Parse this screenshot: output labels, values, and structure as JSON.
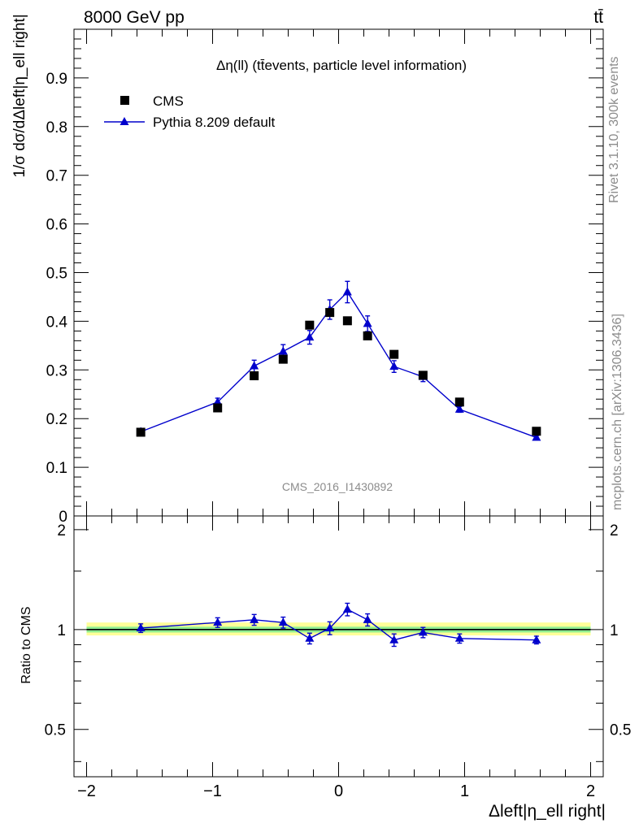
{
  "header": {
    "left": "8000 GeV pp",
    "right": "tt̄"
  },
  "side_text": {
    "rivet": "Rivet 3.1.10,  300k events",
    "mcplots": "mcplots.cern.ch [arXiv:1306.3436]"
  },
  "chart_data": [
    {
      "type": "scatter",
      "title": "Δη(ll) (tt̄events, particle level information)",
      "watermark": "CMS_2016_I1430892",
      "xlabel": "Δleft|η_ell right|",
      "ylabel": "1/σ dσ/dΔleft|η_ell right|",
      "xlim": [
        -2.1,
        2.1
      ],
      "ylim": [
        0,
        1.0
      ],
      "yticks": [
        0,
        0.1,
        0.2,
        0.3,
        0.4,
        0.5,
        0.6,
        0.7,
        0.8,
        0.9
      ],
      "ytick_labels": [
        "0",
        "0.1",
        "0.2",
        "0.3",
        "0.4",
        "0.5",
        "0.6",
        "0.7",
        "0.8",
        "0.9"
      ],
      "legend_placement": "top-left",
      "series": [
        {
          "name": "CMS",
          "color": "#000000",
          "marker": "square",
          "x": [
            -1.57,
            -0.96,
            -0.67,
            -0.44,
            -0.23,
            -0.07,
            0.07,
            0.23,
            0.44,
            0.67,
            0.96,
            1.57
          ],
          "y": [
            0.172,
            0.222,
            0.288,
            0.322,
            0.392,
            0.418,
            0.401,
            0.37,
            0.332,
            0.289,
            0.234,
            0.174
          ]
        },
        {
          "name": "Pythia 8.209 default",
          "color": "#0000cc",
          "marker": "triangle",
          "x": [
            -1.57,
            -0.96,
            -0.67,
            -0.44,
            -0.23,
            -0.07,
            0.07,
            0.23,
            0.44,
            0.67,
            0.96,
            1.57
          ],
          "y": [
            0.173,
            0.234,
            0.308,
            0.338,
            0.367,
            0.424,
            0.46,
            0.395,
            0.307,
            0.286,
            0.219,
            0.161
          ],
          "yerr": [
            0.005,
            0.008,
            0.012,
            0.014,
            0.014,
            0.02,
            0.022,
            0.016,
            0.012,
            0.01,
            0.006,
            0.004
          ]
        }
      ]
    },
    {
      "type": "scatter",
      "ylabel": "Ratio to CMS",
      "xlabel": "Δleft|η_ell right|",
      "xlim": [
        -2.1,
        2.1
      ],
      "ylim": [
        0.36,
        2.2
      ],
      "yscale": "log",
      "xticks": [
        -2,
        -1,
        0,
        1,
        2
      ],
      "xtick_labels": [
        "−2",
        "−1",
        "0",
        "1",
        "2"
      ],
      "yticks": [
        0.5,
        1,
        2
      ],
      "ytick_labels": [
        "0.5",
        "1",
        "2"
      ],
      "reference_band": {
        "inner": [
          0.98,
          1.02
        ],
        "outer": [
          0.96,
          1.05
        ],
        "inner_color": "#90ee90",
        "outer_color": "#ffff99"
      },
      "series": [
        {
          "name": "Pythia 8.209 default",
          "color": "#0000cc",
          "marker": "triangle",
          "x": [
            -1.57,
            -0.96,
            -0.67,
            -0.44,
            -0.23,
            -0.07,
            0.07,
            0.23,
            0.44,
            0.67,
            0.96,
            1.57
          ],
          "y": [
            1.01,
            1.05,
            1.07,
            1.05,
            0.94,
            1.01,
            1.15,
            1.07,
            0.93,
            0.98,
            0.94,
            0.93
          ],
          "yerr": [
            0.03,
            0.035,
            0.04,
            0.04,
            0.035,
            0.045,
            0.05,
            0.045,
            0.04,
            0.035,
            0.03,
            0.025
          ]
        }
      ]
    }
  ]
}
